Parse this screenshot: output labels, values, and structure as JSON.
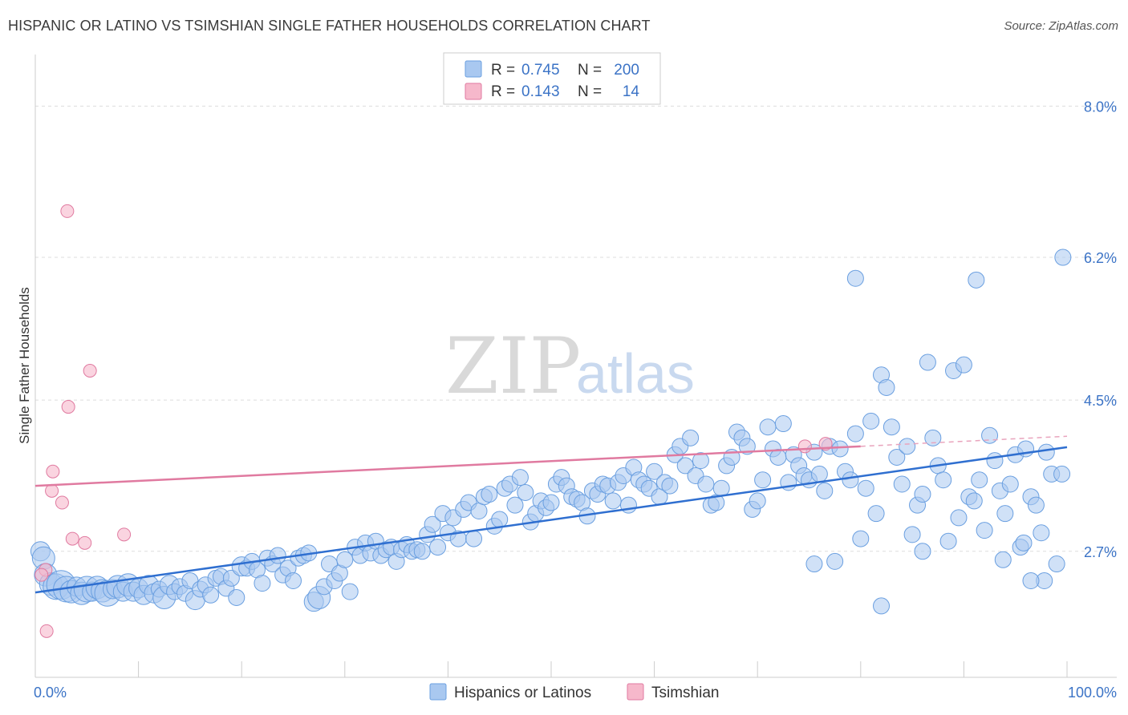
{
  "header": {
    "title": "HISPANIC OR LATINO VS TSIMSHIAN SINGLE FATHER HOUSEHOLDS CORRELATION CHART",
    "source": "Source: ZipAtlas.com"
  },
  "watermark": {
    "zip": "ZIP",
    "atlas": "atlas"
  },
  "legend": {
    "r_label": "R =",
    "n_label": "N =",
    "rows": [
      {
        "r": "0.745",
        "n": "200",
        "color": "#a9c8f0"
      },
      {
        "r": "0.143",
        "n": "14",
        "color": "#f6b8cb"
      }
    ]
  },
  "chart_data": {
    "type": "scatter",
    "title": "HISPANIC OR LATINO VS TSIMSHIAN SINGLE FATHER HOUSEHOLDS CORRELATION CHART",
    "xlabel": "",
    "ylabel": "Single Father Households",
    "xlim": [
      0,
      100
    ],
    "ylim": [
      1.2,
      8.5
    ],
    "x_tick_labels": [
      "0.0%",
      "100.0%"
    ],
    "y_ticks": [
      2.7,
      4.5,
      6.2,
      8.0
    ],
    "y_tick_labels": [
      "2.7%",
      "4.5%",
      "6.2%",
      "8.0%"
    ],
    "grid": true,
    "legend_position": "top-center",
    "series": [
      {
        "name": "Hispanics or Latinos",
        "color": "#6a9fe0",
        "fill": "#a9c8f0",
        "trend": {
          "x": [
            0,
            100
          ],
          "y": [
            2.21,
            3.94
          ]
        },
        "points": [
          [
            0.5,
            2.7,
            12
          ],
          [
            0.8,
            2.62,
            14
          ],
          [
            1.0,
            2.42,
            14
          ],
          [
            1.5,
            2.31,
            14
          ],
          [
            2.0,
            2.28,
            16
          ],
          [
            2.5,
            2.3,
            18
          ],
          [
            3.0,
            2.25,
            16
          ],
          [
            3.5,
            2.22,
            14
          ],
          [
            4.0,
            2.28,
            12
          ],
          [
            4.5,
            2.2,
            14
          ],
          [
            5.0,
            2.25,
            16
          ],
          [
            5.5,
            2.22,
            12
          ],
          [
            6.0,
            2.27,
            14
          ],
          [
            6.5,
            2.23,
            14
          ],
          [
            7.0,
            2.2,
            16
          ],
          [
            7.5,
            2.25,
            12
          ],
          [
            8.0,
            2.28,
            14
          ],
          [
            8.5,
            2.22,
            12
          ],
          [
            9.0,
            2.3,
            14
          ],
          [
            9.5,
            2.22,
            12
          ],
          [
            10.0,
            2.26,
            12
          ],
          [
            10.5,
            2.18,
            12
          ],
          [
            11.0,
            2.3,
            12
          ],
          [
            11.5,
            2.2,
            12
          ],
          [
            12.0,
            2.25,
            10
          ],
          [
            12.5,
            2.15,
            14
          ],
          [
            13.0,
            2.3,
            12
          ],
          [
            13.5,
            2.22,
            10
          ],
          [
            14.0,
            2.28,
            10
          ],
          [
            14.5,
            2.2,
            10
          ],
          [
            15.0,
            2.35,
            10
          ],
          [
            15.5,
            2.12,
            12
          ],
          [
            16.0,
            2.25,
            10
          ],
          [
            16.5,
            2.3,
            10
          ],
          [
            17.0,
            2.18,
            10
          ],
          [
            17.5,
            2.38,
            10
          ],
          [
            18.0,
            2.4,
            10
          ],
          [
            18.5,
            2.26,
            10
          ],
          [
            19.0,
            2.38,
            10
          ],
          [
            19.5,
            2.15,
            10
          ],
          [
            20.0,
            2.52,
            12
          ],
          [
            20.5,
            2.5,
            10
          ],
          [
            21.0,
            2.58,
            10
          ],
          [
            21.5,
            2.48,
            10
          ],
          [
            22.0,
            2.32,
            10
          ],
          [
            22.5,
            2.62,
            10
          ],
          [
            23.0,
            2.55,
            10
          ],
          [
            23.5,
            2.65,
            10
          ],
          [
            24.0,
            2.42,
            10
          ],
          [
            24.5,
            2.5,
            10
          ],
          [
            25.0,
            2.35,
            10
          ],
          [
            25.5,
            2.62,
            10
          ],
          [
            26.0,
            2.65,
            10
          ],
          [
            26.5,
            2.68,
            10
          ],
          [
            27.0,
            2.1,
            12
          ],
          [
            27.5,
            2.15,
            14
          ],
          [
            28.0,
            2.28,
            10
          ],
          [
            28.5,
            2.55,
            10
          ],
          [
            29.0,
            2.35,
            10
          ],
          [
            29.5,
            2.44,
            10
          ],
          [
            30.0,
            2.6,
            10
          ],
          [
            30.5,
            2.22,
            10
          ],
          [
            31.0,
            2.75,
            10
          ],
          [
            31.5,
            2.65,
            10
          ],
          [
            32.0,
            2.8,
            10
          ],
          [
            32.5,
            2.68,
            10
          ],
          [
            33.0,
            2.82,
            10
          ],
          [
            33.5,
            2.65,
            10
          ],
          [
            34.0,
            2.72,
            10
          ],
          [
            34.5,
            2.75,
            10
          ],
          [
            35.0,
            2.58,
            10
          ],
          [
            35.5,
            2.72,
            10
          ],
          [
            36.0,
            2.78,
            10
          ],
          [
            36.5,
            2.7,
            10
          ],
          [
            37.0,
            2.72,
            10
          ],
          [
            37.5,
            2.7,
            10
          ],
          [
            38.0,
            2.9,
            10
          ],
          [
            38.5,
            3.02,
            10
          ],
          [
            39.0,
            2.75,
            10
          ],
          [
            39.5,
            3.15,
            10
          ],
          [
            40.0,
            2.92,
            10
          ],
          [
            40.5,
            3.1,
            10
          ],
          [
            41.0,
            2.85,
            10
          ],
          [
            41.5,
            3.2,
            10
          ],
          [
            42.0,
            3.28,
            10
          ],
          [
            42.5,
            2.85,
            10
          ],
          [
            43.0,
            3.18,
            10
          ],
          [
            43.5,
            3.35,
            10
          ],
          [
            44.0,
            3.38,
            10
          ],
          [
            44.5,
            3.0,
            10
          ],
          [
            45.0,
            3.08,
            10
          ],
          [
            45.5,
            3.45,
            10
          ],
          [
            46.0,
            3.5,
            10
          ],
          [
            46.5,
            3.25,
            10
          ],
          [
            47.0,
            3.58,
            10
          ],
          [
            47.5,
            3.4,
            10
          ],
          [
            48.0,
            3.05,
            10
          ],
          [
            48.5,
            3.15,
            10
          ],
          [
            49.0,
            3.3,
            10
          ],
          [
            49.5,
            3.22,
            10
          ],
          [
            50.0,
            3.28,
            10
          ],
          [
            50.5,
            3.5,
            10
          ],
          [
            51.0,
            3.58,
            10
          ],
          [
            51.5,
            3.48,
            10
          ],
          [
            52.0,
            3.35,
            10
          ],
          [
            52.5,
            3.32,
            10
          ],
          [
            53.0,
            3.28,
            10
          ],
          [
            53.5,
            3.12,
            10
          ],
          [
            54.0,
            3.42,
            10
          ],
          [
            54.5,
            3.38,
            10
          ],
          [
            55.0,
            3.5,
            10
          ],
          [
            55.5,
            3.48,
            10
          ],
          [
            56.0,
            3.3,
            10
          ],
          [
            56.5,
            3.52,
            10
          ],
          [
            57.0,
            3.6,
            10
          ],
          [
            57.5,
            3.25,
            10
          ],
          [
            58.0,
            3.7,
            10
          ],
          [
            58.5,
            3.55,
            10
          ],
          [
            59.0,
            3.5,
            10
          ],
          [
            59.5,
            3.45,
            10
          ],
          [
            60.0,
            3.65,
            10
          ],
          [
            60.5,
            3.35,
            10
          ],
          [
            61.0,
            3.52,
            10
          ],
          [
            61.5,
            3.48,
            10
          ],
          [
            62.0,
            3.85,
            10
          ],
          [
            62.5,
            3.95,
            10
          ],
          [
            63.0,
            3.72,
            10
          ],
          [
            63.5,
            4.05,
            10
          ],
          [
            64.0,
            3.6,
            10
          ],
          [
            64.5,
            3.78,
            10
          ],
          [
            65.0,
            3.5,
            10
          ],
          [
            65.5,
            3.25,
            10
          ],
          [
            66.0,
            3.28,
            10
          ],
          [
            66.5,
            3.45,
            10
          ],
          [
            67.0,
            3.72,
            10
          ],
          [
            67.5,
            3.82,
            10
          ],
          [
            68.0,
            4.12,
            10
          ],
          [
            68.5,
            4.05,
            10
          ],
          [
            69.0,
            3.95,
            10
          ],
          [
            69.5,
            3.2,
            10
          ],
          [
            70.0,
            3.3,
            10
          ],
          [
            70.5,
            3.55,
            10
          ],
          [
            71.0,
            4.18,
            10
          ],
          [
            71.5,
            3.92,
            10
          ],
          [
            72.0,
            3.82,
            10
          ],
          [
            72.5,
            4.22,
            10
          ],
          [
            73.0,
            3.52,
            10
          ],
          [
            73.5,
            3.85,
            10
          ],
          [
            74.0,
            3.72,
            10
          ],
          [
            74.5,
            3.6,
            10
          ],
          [
            75.0,
            3.55,
            10
          ],
          [
            75.5,
            3.88,
            10
          ],
          [
            76.0,
            3.62,
            10
          ],
          [
            76.5,
            3.42,
            10
          ],
          [
            77.0,
            3.95,
            10
          ],
          [
            77.5,
            2.58,
            10
          ],
          [
            78.0,
            3.92,
            10
          ],
          [
            78.5,
            3.65,
            10
          ],
          [
            79.0,
            3.55,
            10
          ],
          [
            79.5,
            4.1,
            10
          ],
          [
            80.0,
            2.85,
            10
          ],
          [
            80.5,
            3.45,
            10
          ],
          [
            81.0,
            4.25,
            10
          ],
          [
            81.5,
            3.15,
            10
          ],
          [
            82.0,
            4.8,
            10
          ],
          [
            82.5,
            4.65,
            10
          ],
          [
            83.0,
            4.18,
            10
          ],
          [
            83.5,
            3.82,
            10
          ],
          [
            84.0,
            3.5,
            10
          ],
          [
            84.5,
            3.95,
            10
          ],
          [
            85.0,
            2.9,
            10
          ],
          [
            85.5,
            3.25,
            10
          ],
          [
            86.0,
            3.38,
            10
          ],
          [
            86.5,
            4.95,
            10
          ],
          [
            87.0,
            4.05,
            10
          ],
          [
            87.5,
            3.72,
            10
          ],
          [
            88.0,
            3.55,
            10
          ],
          [
            88.5,
            2.82,
            10
          ],
          [
            89.0,
            4.85,
            10
          ],
          [
            89.5,
            3.1,
            10
          ],
          [
            90.0,
            4.92,
            10
          ],
          [
            90.5,
            3.35,
            10
          ],
          [
            91.0,
            3.3,
            10
          ],
          [
            91.5,
            3.55,
            10
          ],
          [
            92.0,
            2.95,
            10
          ],
          [
            92.5,
            4.08,
            10
          ],
          [
            93.0,
            3.78,
            10
          ],
          [
            93.5,
            3.42,
            10
          ],
          [
            94.0,
            3.15,
            10
          ],
          [
            94.5,
            3.5,
            10
          ],
          [
            95.0,
            3.85,
            10
          ],
          [
            95.5,
            2.75,
            10
          ],
          [
            96.0,
            3.92,
            10
          ],
          [
            96.5,
            3.35,
            10
          ],
          [
            97.0,
            3.25,
            10
          ],
          [
            97.5,
            2.92,
            10
          ],
          [
            98.0,
            3.88,
            10
          ],
          [
            98.5,
            3.62,
            10
          ],
          [
            99.0,
            2.55,
            10
          ],
          [
            99.5,
            3.62,
            10
          ],
          [
            79.5,
            5.95,
            10
          ],
          [
            91.2,
            5.93,
            10
          ],
          [
            99.6,
            6.2,
            10
          ],
          [
            75.5,
            2.55,
            10
          ],
          [
            97.8,
            2.35,
            10
          ],
          [
            96.5,
            2.35,
            10
          ],
          [
            86.0,
            2.7,
            10
          ],
          [
            82.0,
            2.05,
            10
          ],
          [
            93.8,
            2.6,
            10
          ],
          [
            95.8,
            2.8,
            10
          ]
        ]
      },
      {
        "name": "Tsimshian",
        "color": "#e07aa0",
        "fill": "#f6b8cb",
        "trend": {
          "x": [
            0,
            80
          ],
          "y": [
            3.48,
            3.95
          ]
        },
        "trend_dash": {
          "x": [
            80,
            100
          ],
          "y": [
            3.95,
            4.07
          ]
        },
        "points": [
          [
            3.1,
            6.75
          ],
          [
            5.3,
            4.85
          ],
          [
            3.2,
            4.42
          ],
          [
            1.7,
            3.65
          ],
          [
            1.6,
            3.42
          ],
          [
            2.6,
            3.28
          ],
          [
            8.6,
            2.9
          ],
          [
            3.6,
            2.85
          ],
          [
            4.8,
            2.8
          ],
          [
            1.0,
            2.48
          ],
          [
            0.6,
            2.42
          ],
          [
            1.1,
            1.75
          ],
          [
            74.6,
            3.95
          ],
          [
            76.6,
            3.98
          ]
        ]
      }
    ]
  },
  "bottom_legend": {
    "items": [
      {
        "label": "Hispanics or Latinos",
        "color": "#a9c8f0"
      },
      {
        "label": "Tsimshian",
        "color": "#f6b8cb"
      }
    ]
  }
}
